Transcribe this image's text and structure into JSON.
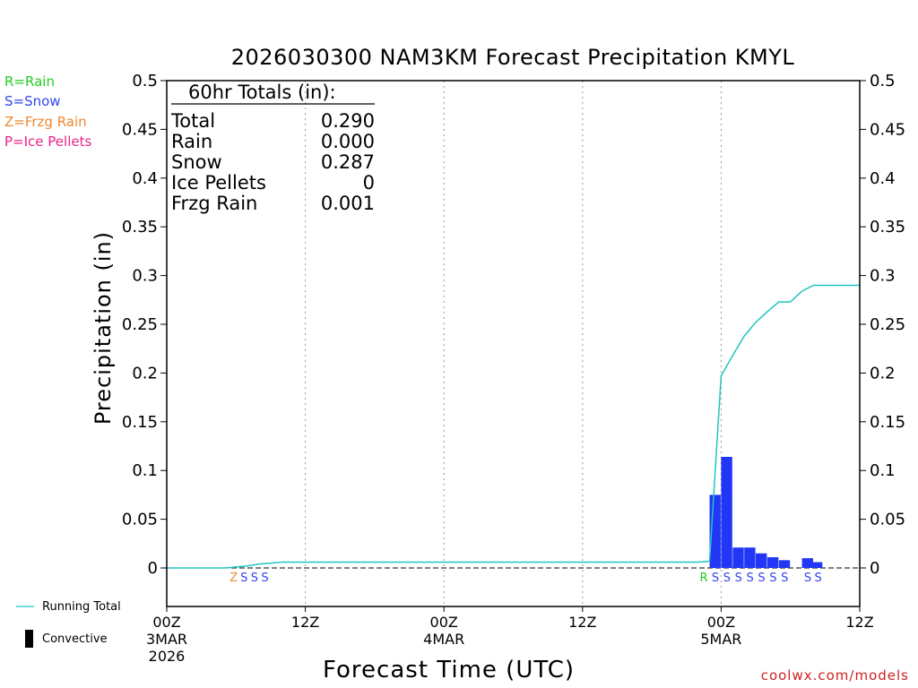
{
  "chart_data": {
    "type": "bar",
    "title": "2026030300 NAM3KM Forecast Precipitation KMYL",
    "xlabel": "Forecast Time (UTC)",
    "ylabel": "Precipitation (in)",
    "ylim": [
      -0.04,
      0.5
    ],
    "yticks": [
      "0.5",
      "0.45",
      "0.4",
      "0.35",
      "0.3",
      "0.25",
      "0.2",
      "0.15",
      "0.1",
      "0.05",
      "0"
    ],
    "ytick_values": [
      0.5,
      0.45,
      0.4,
      0.35,
      0.3,
      0.25,
      0.2,
      0.15,
      0.1,
      0.05,
      0
    ],
    "xlim_hours": [
      0,
      60
    ],
    "xticks": [
      {
        "hour": 0,
        "line1": "00Z",
        "line2": "3MAR",
        "line3": "2026"
      },
      {
        "hour": 12,
        "line1": "12Z",
        "line2": "",
        "line3": ""
      },
      {
        "hour": 24,
        "line1": "00Z",
        "line2": "4MAR",
        "line3": ""
      },
      {
        "hour": 36,
        "line1": "12Z",
        "line2": "",
        "line3": ""
      },
      {
        "hour": 48,
        "line1": "00Z",
        "line2": "5MAR",
        "line3": ""
      },
      {
        "hour": 60,
        "line1": "12Z",
        "line2": "",
        "line3": ""
      }
    ],
    "bars": [
      {
        "hour": 47.5,
        "value": 0.075
      },
      {
        "hour": 48.5,
        "value": 0.114
      },
      {
        "hour": 49.5,
        "value": 0.021
      },
      {
        "hour": 50.5,
        "value": 0.021
      },
      {
        "hour": 51.5,
        "value": 0.015
      },
      {
        "hour": 52.5,
        "value": 0.011
      },
      {
        "hour": 53.5,
        "value": 0.008
      },
      {
        "hour": 55.5,
        "value": 0.01
      },
      {
        "hour": 56.3,
        "value": 0.006
      }
    ],
    "running_total": {
      "hours": [
        0,
        5,
        6,
        7,
        8,
        9,
        10,
        46,
        47,
        48,
        49,
        50,
        51,
        52,
        53,
        54,
        55,
        56,
        57,
        58,
        59,
        60
      ],
      "values": [
        0,
        0,
        0.001,
        0.002,
        0.004,
        0.005,
        0.006,
        0.006,
        0.007,
        0.197,
        0.218,
        0.238,
        0.252,
        0.263,
        0.273,
        0.273,
        0.284,
        0.29,
        0.29,
        0.29,
        0.29,
        0.29
      ]
    },
    "ptype_markers": [
      {
        "hour": 5.8,
        "label": "Z",
        "type": "frzg"
      },
      {
        "hour": 6.7,
        "label": "S",
        "type": "snow"
      },
      {
        "hour": 7.6,
        "label": "S",
        "type": "snow"
      },
      {
        "hour": 8.5,
        "label": "S",
        "type": "snow"
      },
      {
        "hour": 46.5,
        "label": "R",
        "type": "rain"
      },
      {
        "hour": 47.5,
        "label": "S",
        "type": "snow"
      },
      {
        "hour": 48.5,
        "label": "S",
        "type": "snow"
      },
      {
        "hour": 49.5,
        "label": "S",
        "type": "snow"
      },
      {
        "hour": 50.5,
        "label": "S",
        "type": "snow"
      },
      {
        "hour": 51.5,
        "label": "S",
        "type": "snow"
      },
      {
        "hour": 52.5,
        "label": "S",
        "type": "snow"
      },
      {
        "hour": 53.5,
        "label": "S",
        "type": "snow"
      },
      {
        "hour": 55.5,
        "label": "S",
        "type": "snow"
      },
      {
        "hour": 56.4,
        "label": "S",
        "type": "snow"
      }
    ]
  },
  "legend_ptype": [
    {
      "text": "R=Rain",
      "color": "#22cc22"
    },
    {
      "text": "S=Snow",
      "color": "#3344ee"
    },
    {
      "text": "Z=Frzg Rain",
      "color": "#ee8833"
    },
    {
      "text": "P=Ice Pellets",
      "color": "#ee2288"
    }
  ],
  "totals_box": {
    "header": "60hr Totals (in):",
    "rows": [
      {
        "label": "Total",
        "value": "0.290"
      },
      {
        "label": "Rain",
        "value": "0.000"
      },
      {
        "label": "Snow",
        "value": "0.287"
      },
      {
        "label": "Ice Pellets",
        "value": "0"
      },
      {
        "label": "Frzg Rain",
        "value": "0.001"
      }
    ]
  },
  "key": {
    "running_total": "Running Total",
    "convective": "Convective"
  },
  "colors": {
    "bar": "#2237f5",
    "running_total": "#22c4c4",
    "rain": "#22cc22",
    "snow": "#3344ee",
    "frzg": "#ee8833",
    "ice": "#ee2288",
    "watermark": "#cc2222"
  },
  "watermark": "coolwx.com/models"
}
